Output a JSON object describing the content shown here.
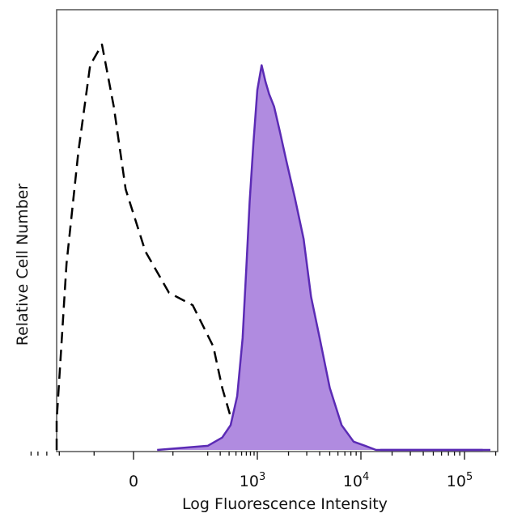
{
  "chart_data": {
    "type": "area",
    "title": "",
    "xlabel": "Log Fluorescence Intensity",
    "ylabel": "Relative Cell Number",
    "x_scale": "biexponential",
    "xlim": [
      -500,
      200000
    ],
    "ylim": [
      0,
      1.0
    ],
    "x_ticks": [
      {
        "value": 0,
        "base": "0",
        "exp": ""
      },
      {
        "value": 1000,
        "base": "10",
        "exp": "3"
      },
      {
        "value": 10000,
        "base": "10",
        "exp": "4"
      },
      {
        "value": 100000,
        "base": "10",
        "exp": "5"
      }
    ],
    "grid": false,
    "legend": "none",
    "series": [
      {
        "style": "dashed-outline",
        "color": "#000000",
        "x": [
          -320,
          -240,
          -170,
          -140,
          -110,
          -80,
          -50,
          -20,
          30,
          90,
          150,
          240,
          320,
          420,
          520,
          600,
          680
        ],
        "y": [
          0.0,
          0.07,
          0.45,
          0.72,
          0.93,
          0.98,
          0.83,
          0.63,
          0.48,
          0.38,
          0.35,
          0.25,
          0.15,
          0.08,
          0.04,
          0.02,
          0.0
        ]
      },
      {
        "style": "filled",
        "color": "#5b2bb5",
        "fill": "#b08be0",
        "x": [
          60,
          200,
          320,
          420,
          520,
          620,
          700,
          780,
          880,
          1000,
          1100,
          1200,
          1300,
          1450,
          1650,
          1900,
          2300,
          2800,
          3300,
          4000,
          5000,
          6500,
          8500,
          11000,
          14000,
          20000,
          40000,
          150000
        ],
        "y": [
          0.0,
          0.01,
          0.03,
          0.06,
          0.13,
          0.27,
          0.44,
          0.6,
          0.74,
          0.87,
          0.93,
          0.89,
          0.86,
          0.83,
          0.77,
          0.7,
          0.61,
          0.51,
          0.37,
          0.27,
          0.15,
          0.06,
          0.02,
          0.01,
          0.0,
          0.0,
          0.0,
          0.0
        ]
      }
    ]
  }
}
